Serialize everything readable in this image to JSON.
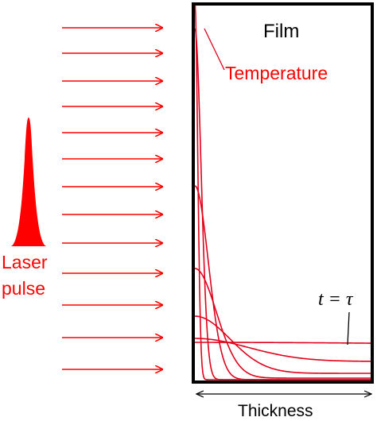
{
  "labels": {
    "film": "Film",
    "temperature": "Temperature",
    "laser_line1": "Laser",
    "laser_line2": "pulse",
    "t_equals_tau": "t = τ",
    "thickness": "Thickness"
  },
  "colors": {
    "laser": "#ff0000",
    "curves": "#e0001b",
    "frame": "#000000",
    "text": "#000000"
  },
  "arrow_count": 12,
  "temperature_profile_count": 7
}
